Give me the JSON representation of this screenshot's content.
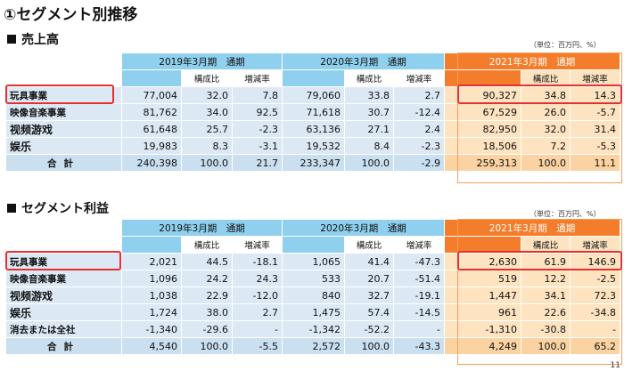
{
  "title": "①セグメント別推移",
  "page_number": "11",
  "sales": {
    "section_title": "売上高",
    "unit": "（単位：百万円、%）",
    "periods": [
      "2019年3月期　通期",
      "2020年3月期　通期",
      "2021年3月期　通期"
    ],
    "subheaders": [
      "構成比",
      "増減率"
    ],
    "rows": [
      {
        "label": "玩具事業",
        "values": [
          "77,004",
          "32.0",
          "7.8",
          "79,060",
          "33.8",
          "2.7",
          "90,327",
          "34.8",
          "14.3"
        ]
      },
      {
        "label": "映像音楽事業",
        "values": [
          "81,762",
          "34.0",
          "92.5",
          "71,618",
          "30.7",
          "-12.4",
          "67,529",
          "26.0",
          "-5.7"
        ]
      },
      {
        "label": "视频游戏",
        "values": [
          "61,648",
          "25.7",
          "-2.3",
          "63,136",
          "27.1",
          "2.4",
          "82,950",
          "32.0",
          "31.4"
        ]
      },
      {
        "label": "娱乐",
        "values": [
          "19,983",
          "8.3",
          "-3.1",
          "19,532",
          "8.4",
          "-2.3",
          "18,506",
          "7.2",
          "-5.3"
        ]
      }
    ],
    "total": {
      "label": "合計",
      "values": [
        "240,398",
        "100.0",
        "21.7",
        "233,347",
        "100.0",
        "-2.9",
        "259,313",
        "100.0",
        "11.1"
      ]
    }
  },
  "profit": {
    "section_title": "セグメント利益",
    "unit": "（単位：百万円、%）",
    "periods": [
      "2019年3月期　通期",
      "2020年3月期　通期",
      "2021年3月期　通期"
    ],
    "subheaders": [
      "構成比",
      "増減率"
    ],
    "rows": [
      {
        "label": "玩具事業",
        "values": [
          "2,021",
          "44.5",
          "-18.1",
          "1,065",
          "41.4",
          "-47.3",
          "2,630",
          "61.9",
          "146.9"
        ]
      },
      {
        "label": "映像音楽事業",
        "values": [
          "1,096",
          "24.2",
          "24.3",
          "533",
          "20.7",
          "-51.4",
          "519",
          "12.2",
          "-2.5"
        ]
      },
      {
        "label": "视频游戏",
        "values": [
          "1,038",
          "22.9",
          "-12.0",
          "840",
          "32.7",
          "-19.1",
          "1,447",
          "34.1",
          "72.3"
        ]
      },
      {
        "label": "娱乐",
        "values": [
          "1,724",
          "38.0",
          "2.7",
          "1,475",
          "57.4",
          "-14.5",
          "961",
          "22.6",
          "-34.8"
        ]
      },
      {
        "label": "消去または全社",
        "values": [
          "-1,340",
          "-29.6",
          "-",
          "-1,342",
          "-52.2",
          "-",
          "-1,310",
          "-30.8",
          "-"
        ]
      }
    ],
    "total": {
      "label": "合計",
      "values": [
        "4,540",
        "100.0",
        "-5.5",
        "2,572",
        "100.0",
        "-43.3",
        "4,249",
        "100.0",
        "65.2"
      ]
    }
  },
  "colors": {
    "header_blue": "#8fd0ee",
    "header_orange": "#f37d2a",
    "cell_blue": "#dce9f5",
    "cell_orange": "#fde3c0",
    "highlight_red": "#e53030"
  }
}
